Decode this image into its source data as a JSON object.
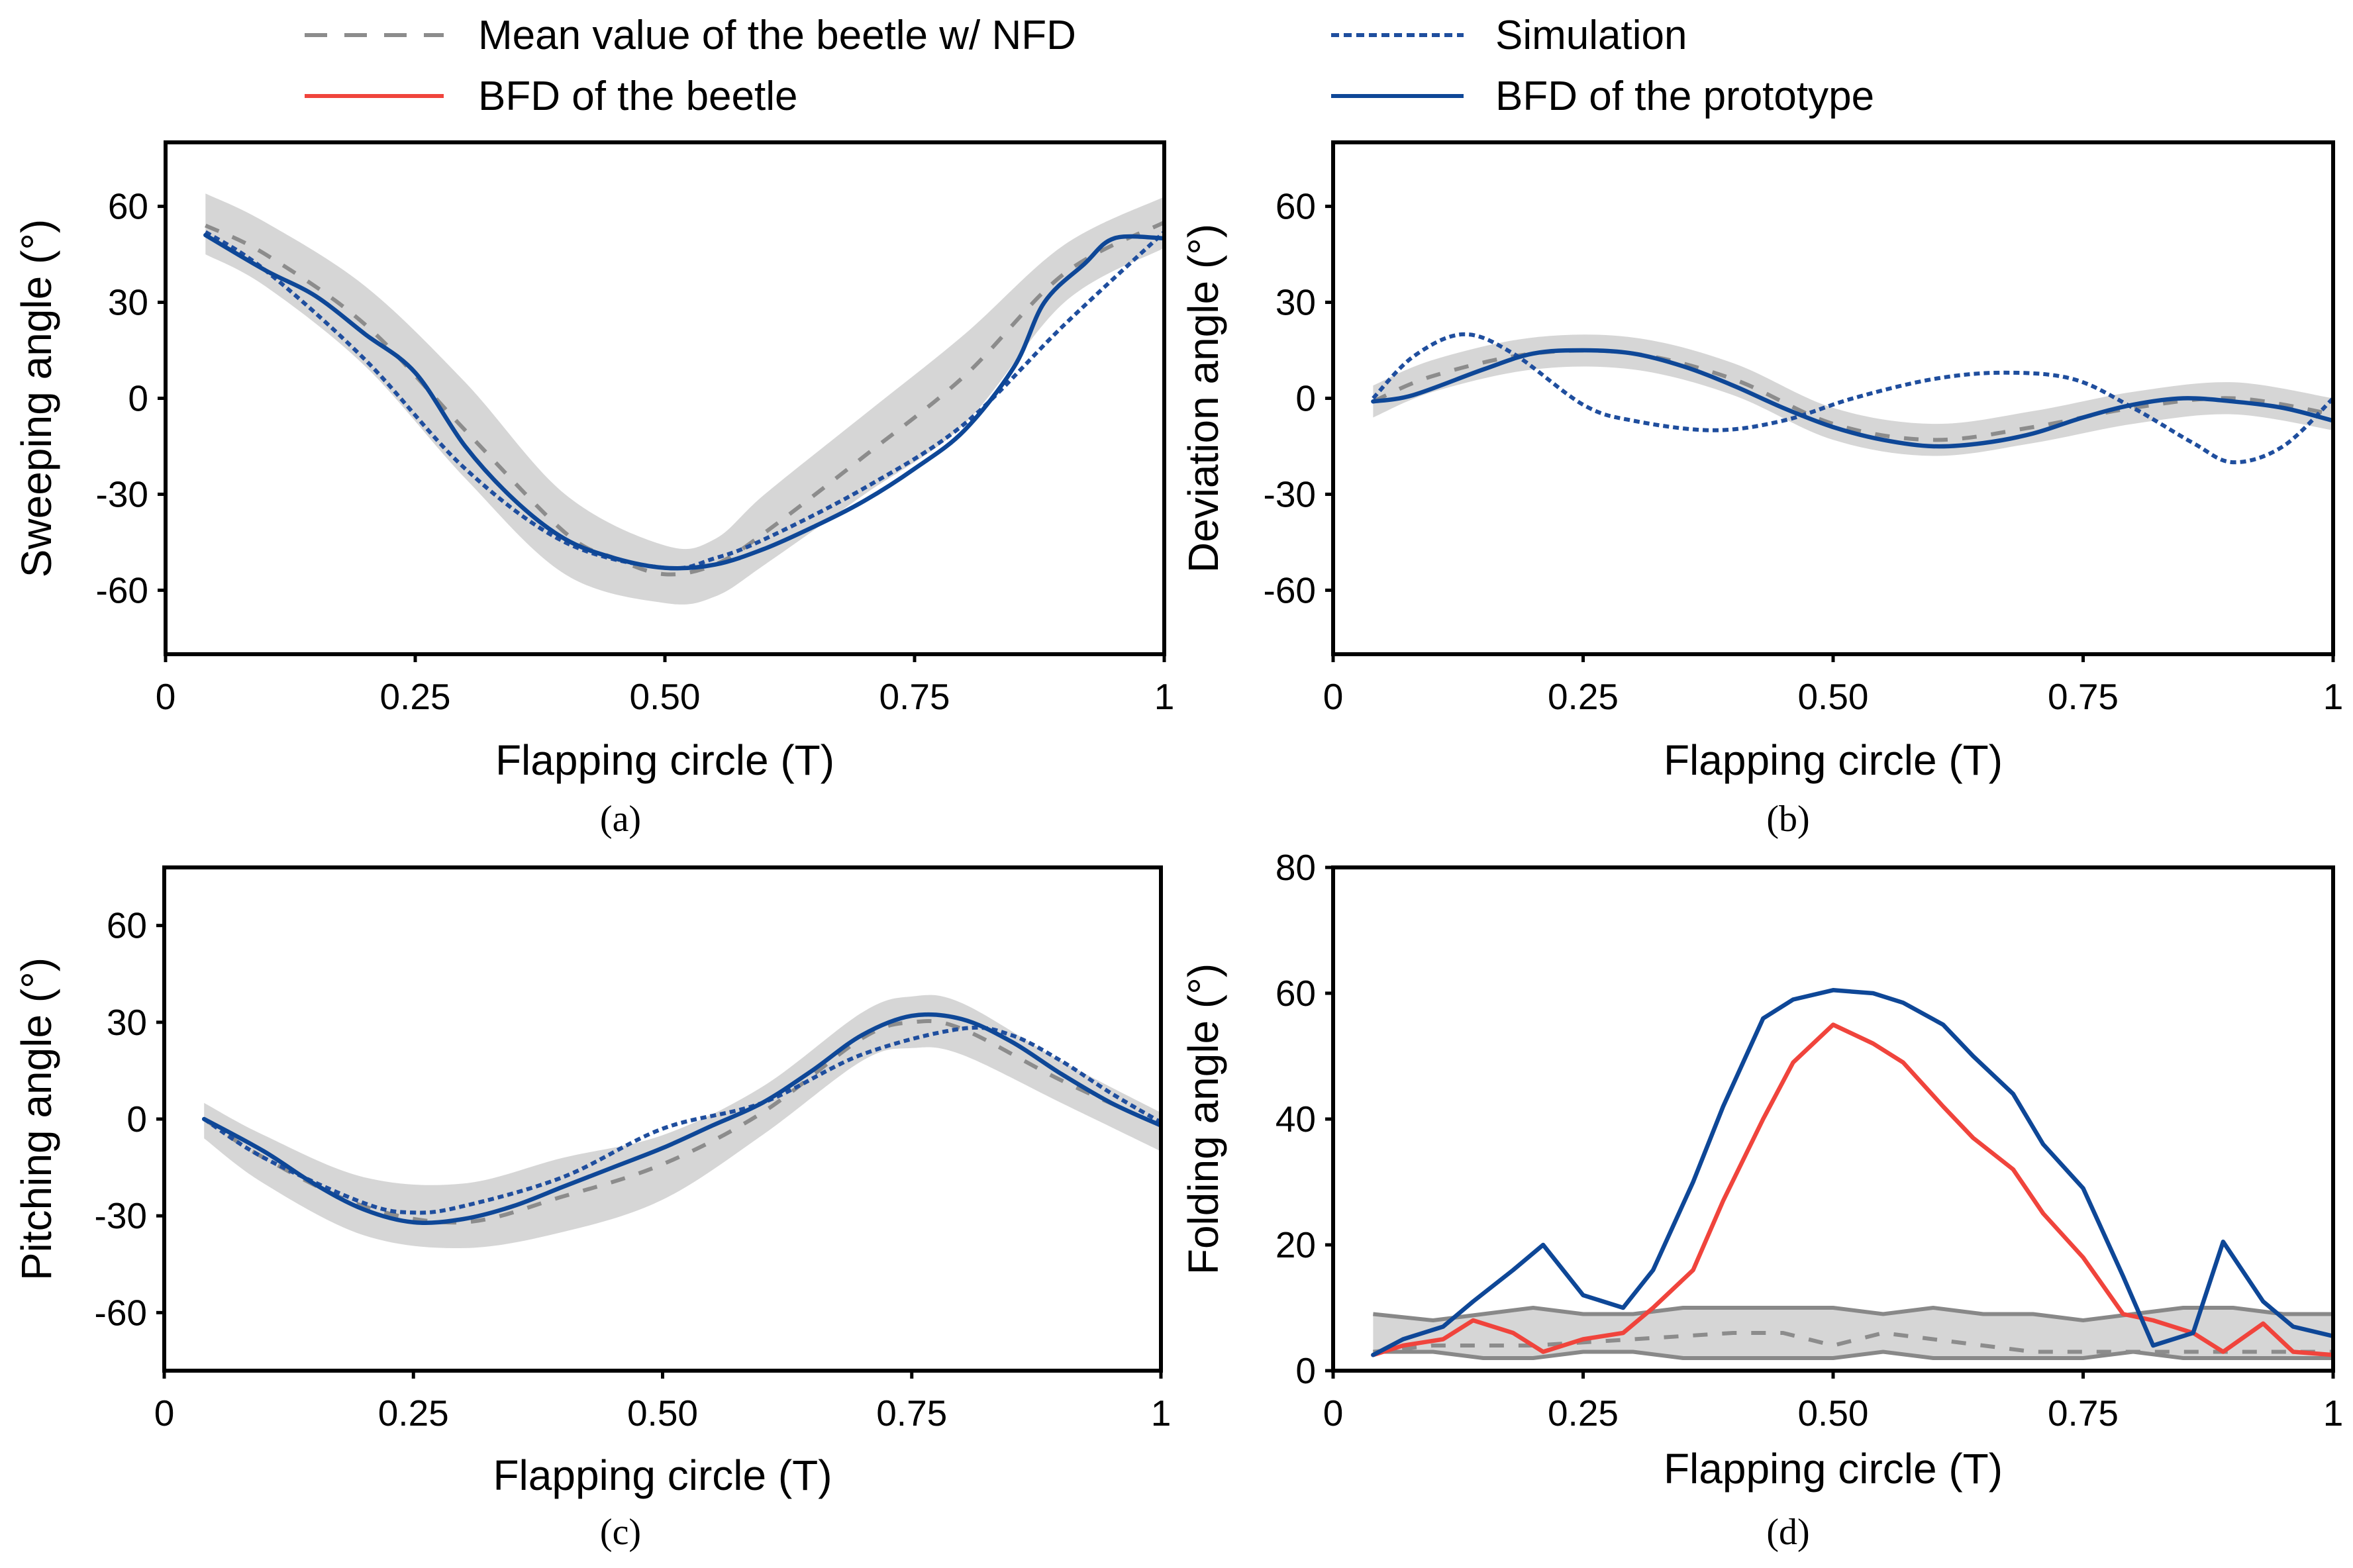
{
  "legend": {
    "items": [
      {
        "label": "Mean value of the beetle w/ NFD",
        "style": "dashed",
        "color": "#8c8c8c"
      },
      {
        "label": "Simulation",
        "style": "dotted",
        "color": "#1f4e9e"
      },
      {
        "label": "BFD of the beetle",
        "style": "solid",
        "color": "#f0443c"
      },
      {
        "label": "BFD of the prototype",
        "style": "solid",
        "color": "#0e4797"
      }
    ]
  },
  "colors": {
    "band": "#d6d6d6",
    "band_edge": "#888888",
    "mean": "#8c8c8c",
    "simulation": "#1f4e9e",
    "prototype": "#0e4797",
    "beetle_bfd": "#f0443c"
  },
  "chart_data": [
    {
      "id": "a",
      "type": "line",
      "caption": "(a)",
      "xlabel": "Flapping circle (T)",
      "ylabel": "Sweeping angle (°)",
      "xlim": [
        0,
        1
      ],
      "ylim": [
        -80,
        80
      ],
      "xticks": [
        0,
        0.25,
        0.5,
        0.75,
        1
      ],
      "xtick_labels": [
        "0",
        "0.25",
        "0.50",
        "0.75",
        "1"
      ],
      "yticks": [
        60,
        30,
        0,
        -30,
        -60
      ],
      "ytick_labels": [
        "60",
        "30",
        "0",
        "-30",
        "-60"
      ],
      "band": {
        "x": [
          0.04,
          0.1,
          0.2,
          0.3,
          0.4,
          0.5,
          0.55,
          0.6,
          0.7,
          0.8,
          0.9,
          1.0
        ],
        "upper": [
          64,
          55,
          35,
          5,
          -30,
          -46,
          -44,
          -30,
          -5,
          20,
          48,
          63
        ],
        "lower": [
          45,
          35,
          10,
          -25,
          -55,
          -64,
          -62,
          -52,
          -30,
          -8,
          30,
          47
        ]
      },
      "series": [
        {
          "name": "Mean value of the beetle w/ NFD",
          "role": "mean",
          "x": [
            0.04,
            0.1,
            0.2,
            0.3,
            0.4,
            0.45,
            0.5,
            0.55,
            0.6,
            0.7,
            0.8,
            0.9,
            1.0
          ],
          "y": [
            54,
            45,
            23,
            -10,
            -42,
            -50,
            -55,
            -52,
            -42,
            -18,
            7,
            39,
            55
          ]
        },
        {
          "name": "Simulation",
          "role": "simulation",
          "x": [
            0.04,
            0.1,
            0.2,
            0.3,
            0.4,
            0.5,
            0.55,
            0.6,
            0.7,
            0.8,
            0.9,
            1.0
          ],
          "y": [
            52,
            40,
            12,
            -22,
            -45,
            -53,
            -50,
            -44,
            -28,
            -8,
            23,
            52
          ]
        },
        {
          "name": "BFD of the prototype",
          "role": "prototype",
          "x": [
            0.04,
            0.1,
            0.15,
            0.2,
            0.25,
            0.3,
            0.35,
            0.4,
            0.45,
            0.5,
            0.55,
            0.6,
            0.65,
            0.7,
            0.75,
            0.8,
            0.85,
            0.88,
            0.92,
            0.95,
            1.0
          ],
          "y": [
            51,
            40,
            32,
            20,
            8,
            -15,
            -32,
            -44,
            -50,
            -53,
            -52,
            -47,
            -40,
            -32,
            -22,
            -10,
            10,
            30,
            42,
            50,
            50
          ]
        }
      ]
    },
    {
      "id": "b",
      "type": "line",
      "caption": "(b)",
      "xlabel": "Flapping circle (T)",
      "ylabel": "Deviation angle (°)",
      "xlim": [
        0,
        1
      ],
      "ylim": [
        -80,
        80
      ],
      "xticks": [
        0,
        0.25,
        0.5,
        0.75,
        1
      ],
      "xtick_labels": [
        "0",
        "0.25",
        "0.50",
        "0.75",
        "1"
      ],
      "yticks": [
        60,
        30,
        0,
        -30,
        -60
      ],
      "ytick_labels": [
        "60",
        "30",
        "0",
        "-30",
        "-60"
      ],
      "band": {
        "x": [
          0.04,
          0.1,
          0.2,
          0.3,
          0.4,
          0.5,
          0.6,
          0.7,
          0.8,
          0.9,
          1.0
        ],
        "upper": [
          4,
          12,
          19,
          19,
          11,
          -3,
          -8,
          -4,
          2,
          5,
          0
        ],
        "lower": [
          -6,
          2,
          9,
          9,
          1,
          -13,
          -18,
          -14,
          -8,
          -5,
          -10
        ]
      },
      "series": [
        {
          "name": "Mean value of the beetle w/ NFD",
          "role": "mean",
          "x": [
            0.04,
            0.1,
            0.2,
            0.3,
            0.4,
            0.5,
            0.6,
            0.7,
            0.8,
            0.9,
            1.0
          ],
          "y": [
            -1,
            7,
            14,
            14,
            6,
            -8,
            -13,
            -9,
            -3,
            0,
            -5
          ]
        },
        {
          "name": "Simulation",
          "role": "simulation",
          "x": [
            0.04,
            0.08,
            0.13,
            0.18,
            0.25,
            0.3,
            0.38,
            0.45,
            0.52,
            0.6,
            0.67,
            0.74,
            0.8,
            0.86,
            0.9,
            0.95,
            1.0
          ],
          "y": [
            0,
            13,
            20,
            14,
            -2,
            -7,
            -10,
            -7,
            0,
            6,
            8,
            6,
            -3,
            -14,
            -20,
            -15,
            0
          ]
        },
        {
          "name": "BFD of the prototype",
          "role": "prototype",
          "x": [
            0.04,
            0.08,
            0.15,
            0.2,
            0.25,
            0.3,
            0.35,
            0.4,
            0.45,
            0.5,
            0.55,
            0.6,
            0.65,
            0.7,
            0.75,
            0.8,
            0.85,
            0.9,
            0.95,
            1.0
          ],
          "y": [
            -1,
            1,
            9,
            14,
            15,
            14,
            10,
            4,
            -3,
            -9,
            -13,
            -15,
            -14,
            -11,
            -6,
            -2,
            0,
            -1,
            -3,
            -7
          ]
        }
      ]
    },
    {
      "id": "c",
      "type": "line",
      "caption": "(c)",
      "xlabel": "Flapping circle (T)",
      "ylabel": "Pitching angle (°)",
      "xlim": [
        0,
        1
      ],
      "ylim": [
        -78,
        78
      ],
      "xticks": [
        0,
        0.25,
        0.5,
        0.75,
        1
      ],
      "xtick_labels": [
        "0",
        "0.25",
        "0.50",
        "0.75",
        "1"
      ],
      "yticks": [
        60,
        30,
        0,
        -30,
        -60
      ],
      "ytick_labels": [
        "60",
        "30",
        "0",
        "-30",
        "-60"
      ],
      "band": {
        "x": [
          0.04,
          0.1,
          0.2,
          0.3,
          0.4,
          0.5,
          0.6,
          0.7,
          0.75,
          0.8,
          0.9,
          1.0
        ],
        "upper": [
          5,
          -5,
          -18,
          -20,
          -12,
          -5,
          10,
          33,
          38,
          36,
          18,
          2
        ],
        "lower": [
          -6,
          -20,
          -36,
          -40,
          -35,
          -25,
          -5,
          18,
          22,
          20,
          5,
          -10
        ]
      },
      "series": [
        {
          "name": "Mean value of the beetle w/ NFD",
          "role": "mean",
          "x": [
            0.04,
            0.1,
            0.2,
            0.3,
            0.4,
            0.5,
            0.6,
            0.7,
            0.75,
            0.8,
            0.9,
            1.0
          ],
          "y": [
            0,
            -12,
            -27,
            -32,
            -24,
            -14,
            2,
            25,
            30,
            28,
            12,
            -2
          ]
        },
        {
          "name": "Simulation",
          "role": "simulation",
          "x": [
            0.04,
            0.1,
            0.2,
            0.25,
            0.3,
            0.4,
            0.5,
            0.6,
            0.7,
            0.8,
            0.85,
            0.9,
            0.95,
            1.0
          ],
          "y": [
            0,
            -12,
            -26,
            -29,
            -27,
            -18,
            -3,
            5,
            20,
            28,
            26,
            18,
            8,
            -1
          ]
        },
        {
          "name": "BFD of the prototype",
          "role": "prototype",
          "x": [
            0.04,
            0.1,
            0.15,
            0.2,
            0.25,
            0.3,
            0.35,
            0.4,
            0.45,
            0.5,
            0.55,
            0.6,
            0.65,
            0.7,
            0.75,
            0.8,
            0.85,
            0.9,
            0.95,
            1.0
          ],
          "y": [
            0,
            -10,
            -20,
            -28,
            -32,
            -31,
            -27,
            -21,
            -15,
            -9,
            -2,
            5,
            15,
            26,
            32,
            31,
            24,
            14,
            5,
            -2
          ]
        }
      ]
    },
    {
      "id": "d",
      "type": "line",
      "caption": "(d)",
      "xlabel": "Flapping circle (T)",
      "ylabel": "Folding angle (°)",
      "xlim": [
        0,
        1
      ],
      "ylim": [
        0,
        80
      ],
      "xticks": [
        0,
        0.25,
        0.5,
        0.75,
        1
      ],
      "xtick_labels": [
        "0",
        "0.25",
        "0.50",
        "0.75",
        "1"
      ],
      "yticks": [
        80,
        60,
        40,
        20,
        0
      ],
      "ytick_labels": [
        "80",
        "60",
        "40",
        "20",
        "0"
      ],
      "band": {
        "x": [
          0.04,
          0.1,
          0.15,
          0.2,
          0.25,
          0.3,
          0.35,
          0.4,
          0.45,
          0.5,
          0.55,
          0.6,
          0.65,
          0.7,
          0.75,
          0.8,
          0.85,
          0.9,
          0.95,
          1.0
        ],
        "upper": [
          9,
          8,
          9,
          10,
          9,
          9,
          10,
          10,
          10,
          10,
          9,
          10,
          9,
          9,
          8,
          9,
          10,
          10,
          9,
          9
        ],
        "lower": [
          3,
          3,
          2,
          2,
          3,
          3,
          2,
          2,
          2,
          2,
          3,
          2,
          2,
          2,
          2,
          3,
          2,
          2,
          2,
          2
        ]
      },
      "series": [
        {
          "name": "Mean value of the beetle w/ NFD",
          "role": "mean",
          "x": [
            0.04,
            0.1,
            0.2,
            0.3,
            0.4,
            0.45,
            0.5,
            0.55,
            0.6,
            0.7,
            0.8,
            0.9,
            1.0
          ],
          "y": [
            3,
            4,
            4,
            5,
            6,
            6,
            4,
            6,
            5,
            3,
            3,
            3,
            3
          ]
        },
        {
          "name": "BFD of the beetle",
          "role": "beetle_bfd",
          "x": [
            0.04,
            0.07,
            0.11,
            0.14,
            0.18,
            0.21,
            0.25,
            0.29,
            0.32,
            0.36,
            0.39,
            0.43,
            0.46,
            0.5,
            0.54,
            0.57,
            0.61,
            0.64,
            0.68,
            0.71,
            0.75,
            0.79,
            0.82,
            0.86,
            0.89,
            0.93,
            0.96,
            1.0
          ],
          "y": [
            2.5,
            4,
            5,
            8,
            6,
            3,
            5,
            6,
            10,
            16,
            27,
            40,
            49,
            55,
            52,
            49,
            42,
            37,
            32,
            25,
            18,
            9,
            8,
            6,
            3,
            7.5,
            3,
            2.5
          ]
        },
        {
          "name": "BFD of the prototype",
          "role": "prototype",
          "x": [
            0.04,
            0.07,
            0.11,
            0.14,
            0.18,
            0.21,
            0.25,
            0.29,
            0.32,
            0.36,
            0.39,
            0.43,
            0.46,
            0.5,
            0.54,
            0.57,
            0.61,
            0.64,
            0.68,
            0.71,
            0.75,
            0.79,
            0.82,
            0.86,
            0.89,
            0.93,
            0.96,
            1.0
          ],
          "y": [
            2.5,
            5,
            7,
            11,
            16,
            20,
            12,
            10,
            16,
            30,
            42,
            56,
            59,
            60.5,
            60,
            58.5,
            55,
            50,
            44,
            36,
            29,
            15,
            4,
            6,
            20.5,
            11,
            7,
            5.5
          ]
        }
      ]
    }
  ]
}
